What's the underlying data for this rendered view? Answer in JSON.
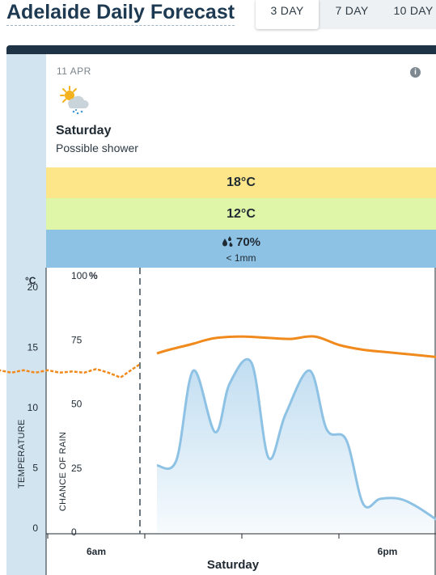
{
  "header": {
    "title": "Adelaide Daily Forecast",
    "tabs": [
      {
        "label": "3 DAY",
        "active": true
      },
      {
        "label": "7 DAY",
        "active": false
      },
      {
        "label": "10 DAY",
        "active": false
      }
    ]
  },
  "day": {
    "date": "11 APR",
    "icon": "partly-cloudy-shower-icon",
    "name": "Saturday",
    "summary": "Possible shower",
    "max_temp": "18°C",
    "min_temp": "12°C",
    "rain_chance": "70%",
    "rain_amount": "< 1mm",
    "colors": {
      "max_band": "#fde68a",
      "min_band": "#dff5a8",
      "rain_band": "#8ec2e5"
    }
  },
  "chart_data": {
    "type": "line",
    "temp_unit": "°C",
    "temp_axis_label": "TEMPERATURE",
    "rain_axis_label": "CHANCE OF RAIN",
    "temp_ticks": [
      "0",
      "5",
      "10",
      "15",
      "20"
    ],
    "rain_ticks": [
      "0",
      "25",
      "50",
      "75",
      "100"
    ],
    "rain_unit": "%",
    "temp_ylim": [
      0,
      20
    ],
    "rain_ylim": [
      0,
      100
    ],
    "xlim": [
      0,
      20
    ],
    "x_ticks": [
      {
        "label": "6am",
        "x": 6
      },
      {
        "label": "6pm",
        "x": 18
      }
    ],
    "xlabel": "Saturday",
    "now_x": 7.8,
    "grid": false,
    "series": [
      {
        "kind": "temperature-past",
        "color": "#f08a1c",
        "x": [
          0,
          0.5,
          1,
          1.5,
          2,
          2.5,
          3,
          3.5,
          4,
          4.5,
          5,
          5.5,
          6,
          6.5,
          7,
          7.5,
          7.8
        ],
        "y": [
          13.3,
          13.3,
          13.1,
          12.8,
          13.1,
          12.9,
          13.1,
          12.9,
          13.1,
          12.9,
          13.0,
          12.9,
          13.2,
          12.9,
          12.5,
          13.2,
          13.6
        ]
      },
      {
        "kind": "temperature-forecast",
        "color": "#f08a1c",
        "x": [
          8.5,
          9,
          10,
          10.5,
          11,
          12,
          13,
          14,
          15,
          16,
          17,
          18,
          19,
          20
        ],
        "y": [
          14.5,
          14.8,
          15.3,
          15.6,
          15.8,
          15.9,
          15.8,
          15.7,
          15.9,
          15.2,
          14.8,
          14.6,
          14.4,
          14.2
        ]
      },
      {
        "kind": "rain-chance",
        "color": "#8ec2e5",
        "x": [
          8.5,
          9.3,
          10.0,
          10.9,
          11.5,
          12.4,
          13.1,
          13.8,
          14.8,
          15.5,
          16.3,
          17.0,
          17.7,
          18.5,
          19.2,
          20
        ],
        "y": [
          26,
          28,
          63,
          39,
          58,
          66,
          29,
          46,
          63,
          40,
          36,
          11,
          13,
          13,
          10,
          5
        ]
      }
    ]
  }
}
